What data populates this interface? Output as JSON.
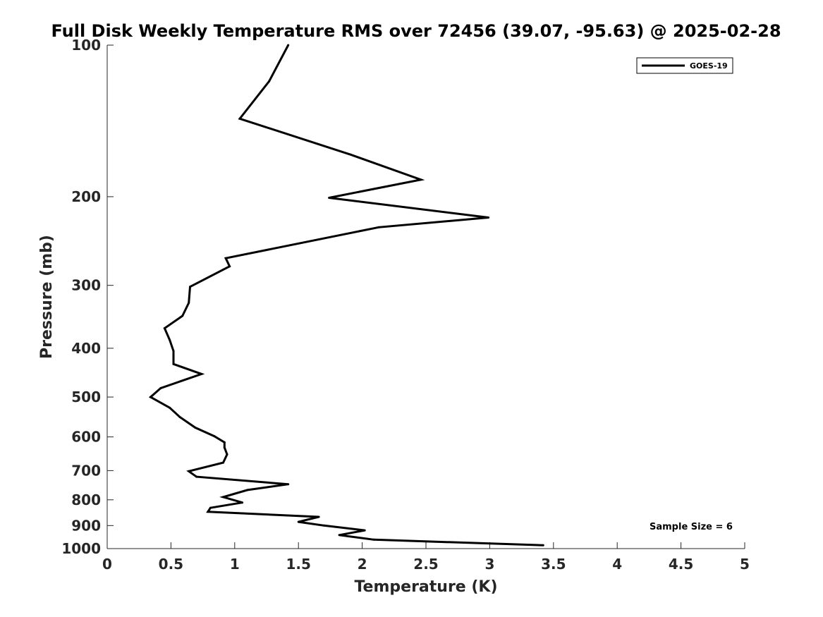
{
  "chart_data": {
    "type": "line",
    "title": "Full Disk Weekly Temperature RMS over 72456 (39.07, -95.63) @ 2025-02-28",
    "xlabel": "Temperature (K)",
    "ylabel": "Pressure (mb)",
    "xlim": [
      0,
      5
    ],
    "ylim": [
      100,
      1000
    ],
    "y_scale": "log",
    "y_reversed": true,
    "x_ticks": [
      0,
      0.5,
      1,
      1.5,
      2,
      2.5,
      3,
      3.5,
      4,
      4.5,
      5
    ],
    "x_tick_labels": [
      "0",
      "0.5",
      "1",
      "1.5",
      "2",
      "2.5",
      "3",
      "3.5",
      "4",
      "4.5",
      "5"
    ],
    "y_ticks": [
      100,
      200,
      300,
      400,
      500,
      600,
      700,
      800,
      900,
      1000
    ],
    "y_tick_labels": [
      "100",
      "200",
      "300",
      "400",
      "500",
      "600",
      "700",
      "800",
      "900",
      "1000"
    ],
    "grid": false,
    "legend_position": "top-right",
    "annotation": "Sample Size = 6",
    "series": [
      {
        "name": "GOES-19",
        "color": "#000000",
        "x": [
          1.42,
          1.27,
          1.04,
          1.91,
          2.46,
          1.74,
          2.99,
          2.13,
          0.93,
          0.96,
          0.65,
          0.64,
          0.59,
          0.45,
          0.49,
          0.52,
          0.52,
          0.74,
          0.42,
          0.34,
          0.49,
          0.57,
          0.69,
          0.84,
          0.92,
          0.92,
          0.94,
          0.91,
          0.64,
          0.7,
          1.42,
          1.1,
          0.91,
          1.06,
          0.81,
          0.79,
          1.66,
          1.5,
          1.7,
          2.02,
          1.82,
          2.09,
          3.42
        ],
        "y": [
          100,
          118,
          140,
          165,
          185,
          201,
          220,
          230,
          265,
          275,
          302,
          325,
          345,
          365,
          385,
          405,
          430,
          450,
          480,
          500,
          525,
          548,
          575,
          598,
          615,
          630,
          650,
          675,
          702,
          720,
          745,
          765,
          790,
          810,
          830,
          845,
          865,
          885,
          900,
          920,
          940,
          960,
          985
        ]
      }
    ]
  }
}
